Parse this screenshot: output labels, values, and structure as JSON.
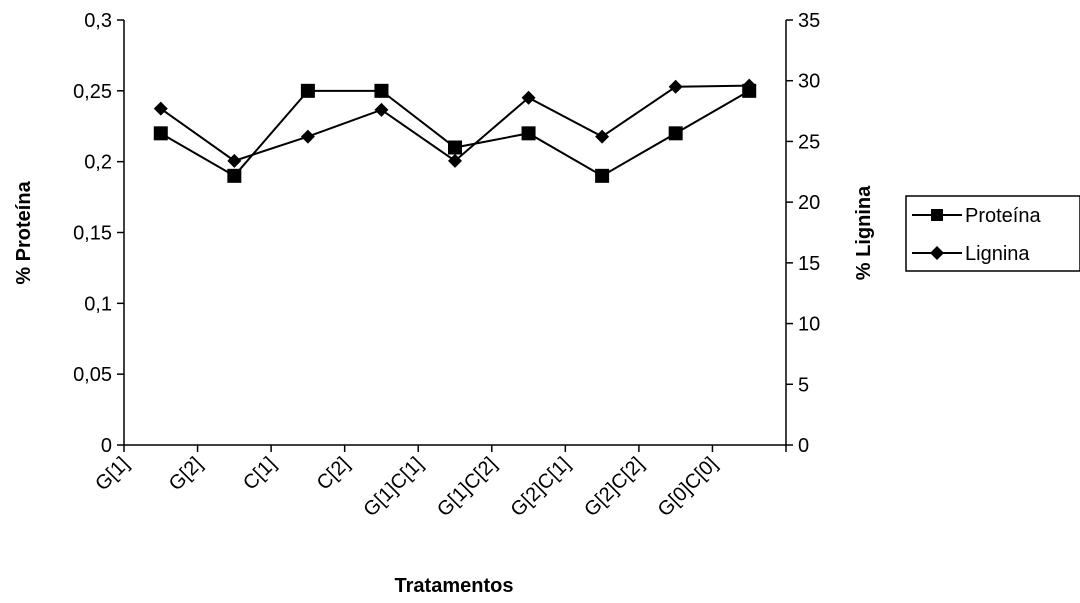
{
  "chart_data": {
    "type": "line",
    "categories": [
      "G[1]",
      "G[2]",
      "C[1]",
      "C[2]",
      "G[1]C[1]",
      "G[1]C[2]",
      "G[2]C[1]",
      "G[2]C[2]",
      "G[0]C[0]"
    ],
    "series": [
      {
        "name": "Proteína",
        "axis": "left",
        "marker": "square",
        "values": [
          0.22,
          0.19,
          0.25,
          0.25,
          0.21,
          0.22,
          0.19,
          0.22,
          0.25
        ]
      },
      {
        "name": "Lignina",
        "axis": "right",
        "marker": "diamond",
        "values": [
          27.7,
          23.4,
          25.4,
          27.6,
          23.4,
          28.6,
          25.4,
          29.5,
          29.6
        ]
      }
    ],
    "xlabel": "Tratamentos",
    "ylabel": "% Proteína",
    "y2label": "% Lignina",
    "ylim": [
      0,
      0.3
    ],
    "y2lim": [
      0,
      35
    ],
    "yticks": [
      "0",
      "0,05",
      "0,1",
      "0,15",
      "0,2",
      "0,25",
      "0,3"
    ],
    "y2ticks": [
      "0",
      "5",
      "10",
      "15",
      "20",
      "25",
      "30",
      "35"
    ],
    "grid": false,
    "legend": "right",
    "line_color": "#000000"
  }
}
